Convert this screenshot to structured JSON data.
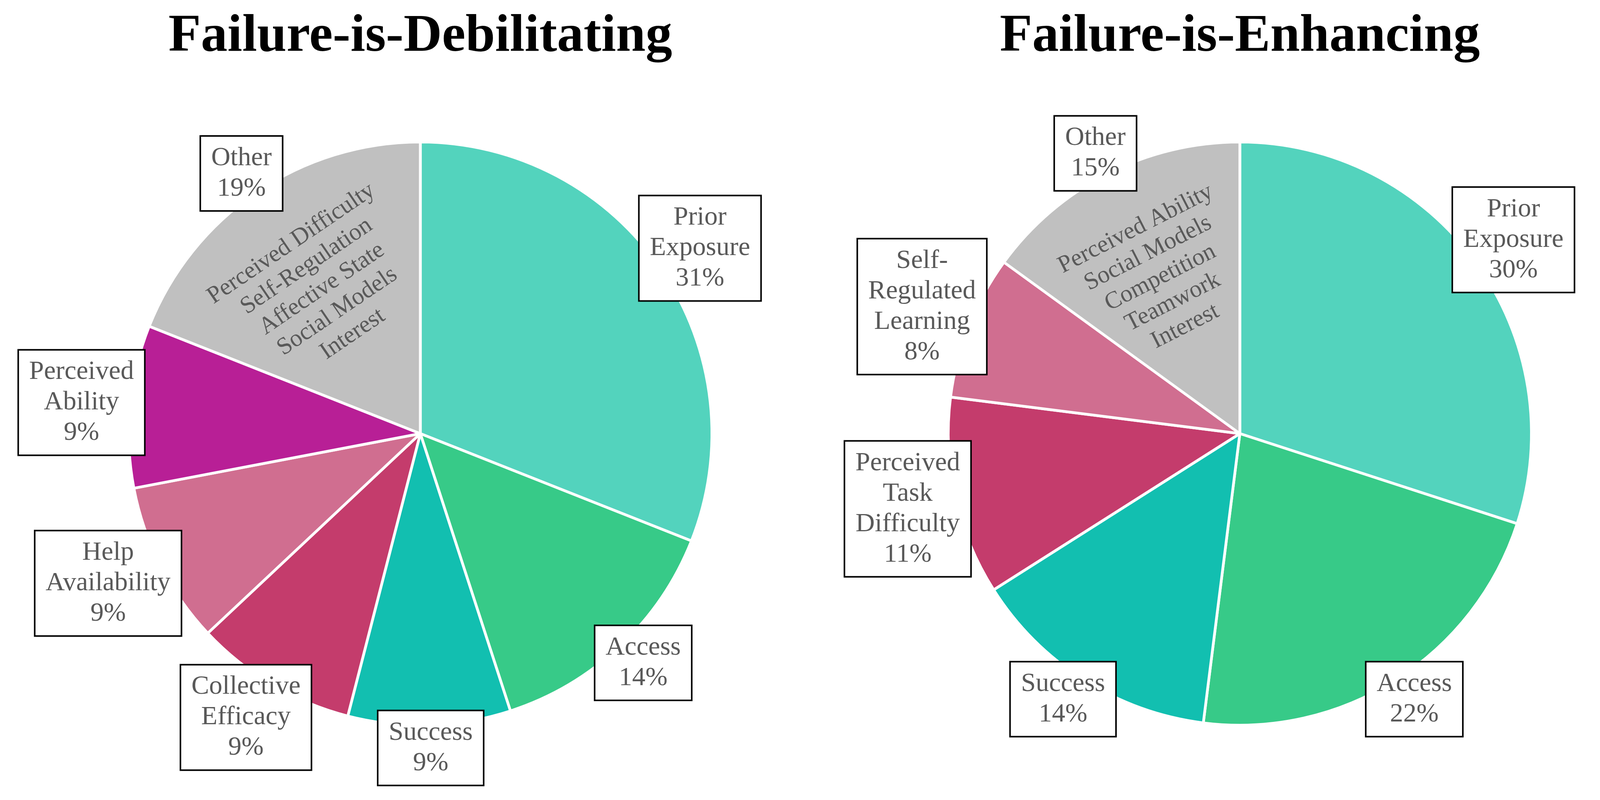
{
  "chart_data": [
    {
      "type": "pie",
      "title": "Failure-is-Debilitating",
      "categories": [
        "Prior Exposure",
        "Access",
        "Success",
        "Collective Efficacy",
        "Help Availability",
        "Perceived Ability",
        "Other"
      ],
      "values": [
        31,
        14,
        9,
        9,
        9,
        9,
        19
      ],
      "value_labels": [
        "31%",
        "14%",
        "9%",
        "9%",
        "9%",
        "9%",
        "19%"
      ],
      "colors": [
        "#53d3bd",
        "#37ca88",
        "#12bfb0",
        "#c43c6c",
        "#d06e90",
        "#b81f96",
        "#c0c0c0"
      ],
      "data_labels": true,
      "annotations": [
        "Perceived Difficulty",
        "Self-Regulation",
        "Affective State",
        "Social Models",
        "Interest"
      ]
    },
    {
      "type": "pie",
      "title": "Failure-is-Enhancing",
      "categories": [
        "Prior Exposure",
        "Access",
        "Success",
        "Perceived Task Difficulty",
        "Self-Regulated Learning",
        "Other"
      ],
      "values": [
        30,
        22,
        14,
        11,
        8,
        15
      ],
      "value_labels": [
        "30%",
        "22%",
        "14%",
        "11%",
        "8%",
        "15%"
      ],
      "colors": [
        "#53d3bd",
        "#37ca88",
        "#12bfb0",
        "#c43c6c",
        "#d06e90",
        "#c0c0c0"
      ],
      "data_labels": true,
      "annotations": [
        "Perceived Ability",
        "Social Models",
        "Competition",
        "Teamwork",
        "Interest"
      ]
    }
  ]
}
